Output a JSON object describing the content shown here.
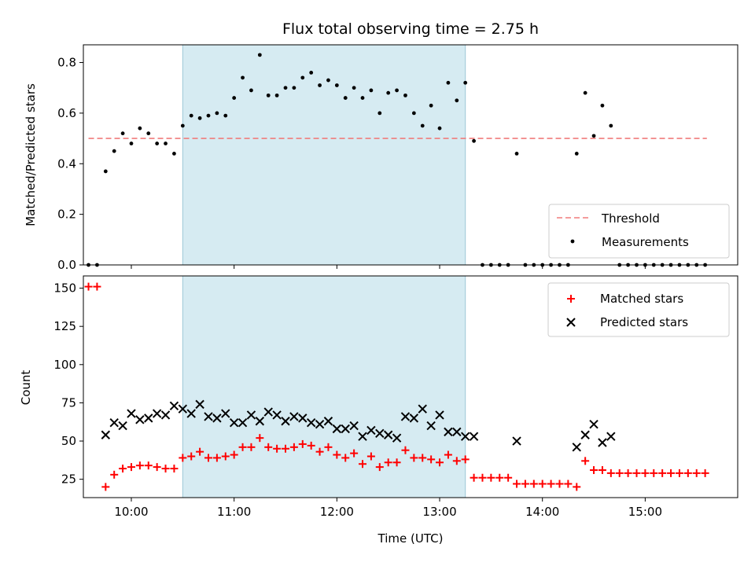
{
  "chart_data": [
    {
      "type": "scatter",
      "title": "Flux total observing time = 2.75 h",
      "ylabel": "Matched/Predicted stars",
      "xlabel": "",
      "xlim": [
        "09:32",
        "15:54"
      ],
      "ylim": [
        0,
        0.87
      ],
      "yticks": [
        0.0,
        0.2,
        0.4,
        0.6,
        0.8
      ],
      "ytick_labels": [
        "0.0",
        "0.2",
        "0.4",
        "0.6",
        "0.8"
      ],
      "xticks": [
        "10:00",
        "11:00",
        "12:00",
        "13:00",
        "14:00",
        "15:00"
      ],
      "highlight_span": [
        "10:30",
        "13:15"
      ],
      "legend_position": "lower right",
      "threshold": {
        "name": "Threshold",
        "value": 0.5,
        "x_range": [
          "09:35",
          "15:36"
        ],
        "color": "#f07c7c"
      },
      "series": [
        {
          "name": "Measurements",
          "color": "#000000",
          "x": [
            "09:35",
            "09:40",
            "09:45",
            "09:50",
            "09:55",
            "10:00",
            "10:05",
            "10:10",
            "10:15",
            "10:20",
            "10:25",
            "10:30",
            "10:35",
            "10:40",
            "10:45",
            "10:50",
            "10:55",
            "11:00",
            "11:05",
            "11:10",
            "11:15",
            "11:20",
            "11:25",
            "11:30",
            "11:35",
            "11:40",
            "11:45",
            "11:50",
            "11:55",
            "12:00",
            "12:05",
            "12:10",
            "12:15",
            "12:20",
            "12:25",
            "12:30",
            "12:35",
            "12:40",
            "12:45",
            "12:50",
            "12:55",
            "13:00",
            "13:05",
            "13:10",
            "13:15",
            "13:20",
            "13:25",
            "13:30",
            "13:35",
            "13:40",
            "13:45",
            "13:50",
            "13:55",
            "14:00",
            "14:05",
            "14:10",
            "14:15",
            "14:20",
            "14:25",
            "14:30",
            "14:35",
            "14:40",
            "14:45",
            "14:50",
            "14:55",
            "15:00",
            "15:05",
            "15:10",
            "15:15",
            "15:20",
            "15:25",
            "15:30",
            "15:35"
          ],
          "y": [
            0.0,
            0.0,
            0.37,
            0.45,
            0.52,
            0.48,
            0.54,
            0.52,
            0.48,
            0.48,
            0.44,
            0.55,
            0.59,
            0.58,
            0.59,
            0.6,
            0.59,
            0.66,
            0.74,
            0.69,
            0.83,
            0.67,
            0.67,
            0.7,
            0.7,
            0.74,
            0.76,
            0.71,
            0.73,
            0.71,
            0.66,
            0.7,
            0.66,
            0.69,
            0.6,
            0.68,
            0.69,
            0.67,
            0.6,
            0.55,
            0.63,
            0.54,
            0.72,
            0.65,
            0.72,
            0.49,
            0.0,
            0.0,
            0.0,
            0.0,
            0.44,
            0.0,
            0.0,
            0.0,
            0.0,
            0.0,
            0.0,
            0.44,
            0.68,
            0.51,
            0.63,
            0.55,
            0.0,
            0.0,
            0.0,
            0.0,
            0.0,
            0.0,
            0.0,
            0.0,
            0.0,
            0.0,
            0.0
          ]
        }
      ]
    },
    {
      "type": "scatter",
      "title": "",
      "ylabel": "Count",
      "xlabel": "Time (UTC)",
      "xlim": [
        "09:32",
        "15:54"
      ],
      "ylim": [
        13,
        158
      ],
      "yticks": [
        25,
        50,
        75,
        100,
        125,
        150
      ],
      "ytick_labels": [
        "25",
        "50",
        "75",
        "100",
        "125",
        "150"
      ],
      "xticks": [
        "10:00",
        "11:00",
        "12:00",
        "13:00",
        "14:00",
        "15:00"
      ],
      "xtick_labels": [
        "10:00",
        "11:00",
        "12:00",
        "13:00",
        "14:00",
        "15:00"
      ],
      "highlight_span": [
        "10:30",
        "13:15"
      ],
      "legend_position": "upper right",
      "series": [
        {
          "name": "Matched stars",
          "marker": "plus",
          "color": "#ff0000",
          "x": [
            "09:35",
            "09:40",
            "09:45",
            "09:50",
            "09:55",
            "10:00",
            "10:05",
            "10:10",
            "10:15",
            "10:20",
            "10:25",
            "10:30",
            "10:35",
            "10:40",
            "10:45",
            "10:50",
            "10:55",
            "11:00",
            "11:05",
            "11:10",
            "11:15",
            "11:20",
            "11:25",
            "11:30",
            "11:35",
            "11:40",
            "11:45",
            "11:50",
            "11:55",
            "12:00",
            "12:05",
            "12:10",
            "12:15",
            "12:20",
            "12:25",
            "12:30",
            "12:35",
            "12:40",
            "12:45",
            "12:50",
            "12:55",
            "13:00",
            "13:05",
            "13:10",
            "13:15",
            "13:20",
            "13:25",
            "13:30",
            "13:35",
            "13:40",
            "13:45",
            "13:50",
            "13:55",
            "14:00",
            "14:05",
            "14:10",
            "14:15",
            "14:20",
            "14:25",
            "14:30",
            "14:35",
            "14:40",
            "14:45",
            "14:50",
            "14:55",
            "15:00",
            "15:05",
            "15:10",
            "15:15",
            "15:20",
            "15:25",
            "15:30",
            "15:35"
          ],
          "y": [
            151,
            151,
            20,
            28,
            32,
            33,
            34,
            34,
            33,
            32,
            32,
            39,
            40,
            43,
            39,
            39,
            40,
            41,
            46,
            46,
            52,
            46,
            45,
            45,
            46,
            48,
            47,
            43,
            46,
            41,
            39,
            42,
            35,
            40,
            33,
            36,
            36,
            44,
            39,
            39,
            38,
            36,
            41,
            37,
            38,
            26,
            26,
            26,
            26,
            26,
            22,
            22,
            22,
            22,
            22,
            22,
            22,
            20,
            37,
            31,
            31,
            29,
            29,
            29,
            29,
            29,
            29,
            29,
            29,
            29,
            29,
            29,
            29
          ]
        },
        {
          "name": "Predicted stars",
          "marker": "x",
          "color": "#000000",
          "x": [
            "09:45",
            "09:50",
            "09:55",
            "10:00",
            "10:05",
            "10:10",
            "10:15",
            "10:20",
            "10:25",
            "10:30",
            "10:35",
            "10:40",
            "10:45",
            "10:50",
            "10:55",
            "11:00",
            "11:05",
            "11:10",
            "11:15",
            "11:20",
            "11:25",
            "11:30",
            "11:35",
            "11:40",
            "11:45",
            "11:50",
            "11:55",
            "12:00",
            "12:05",
            "12:10",
            "12:15",
            "12:20",
            "12:25",
            "12:30",
            "12:35",
            "12:40",
            "12:45",
            "12:50",
            "12:55",
            "13:00",
            "13:05",
            "13:10",
            "13:15",
            "13:20",
            "13:45",
            "14:20",
            "14:25",
            "14:30",
            "14:35",
            "14:40"
          ],
          "y": [
            54,
            62,
            60,
            68,
            64,
            65,
            68,
            67,
            73,
            71,
            68,
            74,
            66,
            65,
            68,
            62,
            62,
            67,
            63,
            69,
            67,
            63,
            66,
            65,
            62,
            61,
            63,
            58,
            58,
            60,
            53,
            57,
            55,
            54,
            52,
            66,
            65,
            71,
            60,
            67,
            56,
            56,
            53,
            53,
            50,
            46,
            54,
            61,
            49,
            53
          ]
        }
      ]
    }
  ]
}
